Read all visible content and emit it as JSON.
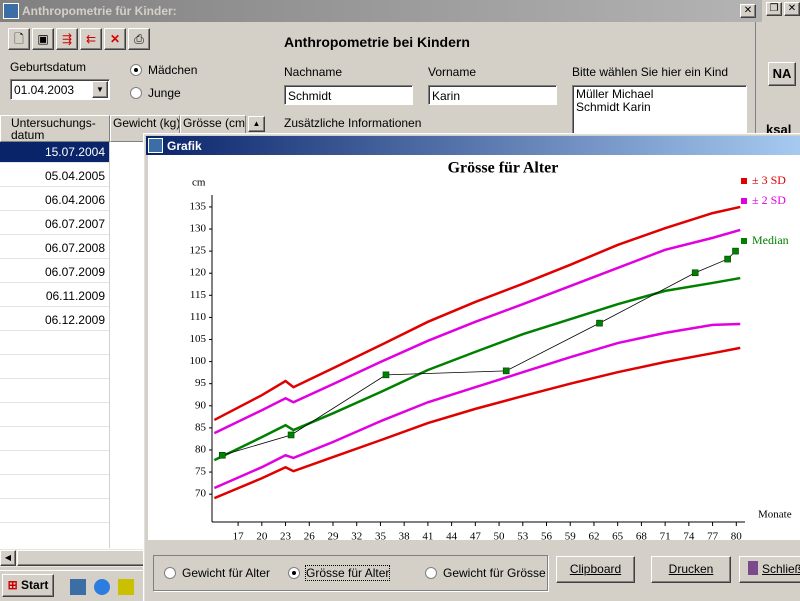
{
  "main_window": {
    "title": "Anthropometrie für Kinder:",
    "heading": "Anthropometrie bei Kindern",
    "birthdate_label": "Geburtsdatum",
    "birthdate": "01.04.2003",
    "gender": {
      "options": [
        "Mädchen",
        "Junge"
      ],
      "selected": 0
    },
    "lastname_label": "Nachname",
    "lastname": "Schmidt",
    "firstname_label": "Vorname",
    "firstname": "Karin",
    "child_list_label": "Bitte wählen Sie hier ein Kind",
    "child_list": [
      "Müller Michael",
      "Schmidt Karin"
    ],
    "additional_info_label": "Zusätzliche Informationen",
    "table": {
      "columns": [
        "Untersuchungs-datum",
        "Gewicht (kg)",
        "Grösse (cm)"
      ],
      "rows": [
        "15.07.2004",
        "05.04.2005",
        "06.04.2006",
        "06.07.2007",
        "06.07.2008",
        "06.07.2009",
        "06.11.2009",
        "06.12.2009"
      ],
      "selected_row": 0
    }
  },
  "side_window": {
    "button": "NA",
    "partial_text": "ksal"
  },
  "grafik_window": {
    "title": "Grafik",
    "chart": {
      "type": "line",
      "title": "Grösse für Alter",
      "y_axis_label": "cm",
      "x_axis_label": "Monate",
      "x": [
        14,
        20,
        23,
        24,
        29,
        35,
        41,
        47,
        53,
        59,
        65,
        71,
        77,
        80.5
      ],
      "series": [
        {
          "name": "± 3 SD",
          "color": "#e00000",
          "values": [
            86.8,
            92.4,
            95.6,
            94.2,
            98.5,
            103.7,
            109.0,
            113.5,
            117.6,
            121.9,
            126.4,
            130.2,
            133.6,
            135.0
          ]
        },
        {
          "name": "± 2 SD",
          "color": "#e000e0",
          "values": [
            83.8,
            89.0,
            91.7,
            90.8,
            94.9,
            99.9,
            104.7,
            109.0,
            113.0,
            117.1,
            121.2,
            125.3,
            128.0,
            129.8
          ]
        },
        {
          "name": "Median",
          "color": "#008000",
          "values": [
            77.7,
            82.9,
            85.6,
            84.5,
            88.3,
            93.1,
            98.1,
            102.2,
            106.2,
            109.6,
            113.0,
            116.0,
            117.8,
            118.9
          ]
        },
        {
          "color": "#e000e0",
          "values": [
            71.4,
            76.1,
            78.8,
            78.2,
            81.8,
            86.5,
            90.8,
            94.2,
            97.6,
            101.0,
            104.2,
            106.5,
            108.3,
            108.5
          ]
        },
        {
          "color": "#e00000",
          "values": [
            69.1,
            73.6,
            76.1,
            75.2,
            78.4,
            82.2,
            86.1,
            89.3,
            92.2,
            95.0,
            97.6,
            99.9,
            101.9,
            103.1
          ]
        }
      ],
      "measurements": {
        "color": "#000000",
        "marker_color": "#008000",
        "x": [
          15.0,
          23.7,
          35.7,
          50.9,
          62.7,
          74.8,
          78.9,
          79.9
        ],
        "values": [
          78.8,
          83.4,
          97.0,
          97.9,
          108.7,
          120.1,
          123.2,
          125.0
        ]
      },
      "xlim": [
        13.7,
        81.1
      ],
      "ylim": [
        63.7,
        137.7
      ],
      "xticks": [
        17,
        20,
        23,
        26,
        29,
        32,
        35,
        38,
        41,
        44,
        47,
        50,
        53,
        56,
        59,
        62,
        65,
        68,
        71,
        74,
        77,
        80
      ],
      "yticks": [
        70,
        75,
        80,
        85,
        90,
        95,
        100,
        105,
        110,
        115,
        120,
        125,
        130,
        135
      ]
    },
    "options": [
      "Gewicht für Alter",
      "Grösse für Alter",
      "Gewicht für Grösse"
    ],
    "selected_option": 1,
    "buttons": [
      "Clipboard",
      "Drucken",
      "Schließen"
    ]
  },
  "taskbar": {
    "start": "Start"
  }
}
